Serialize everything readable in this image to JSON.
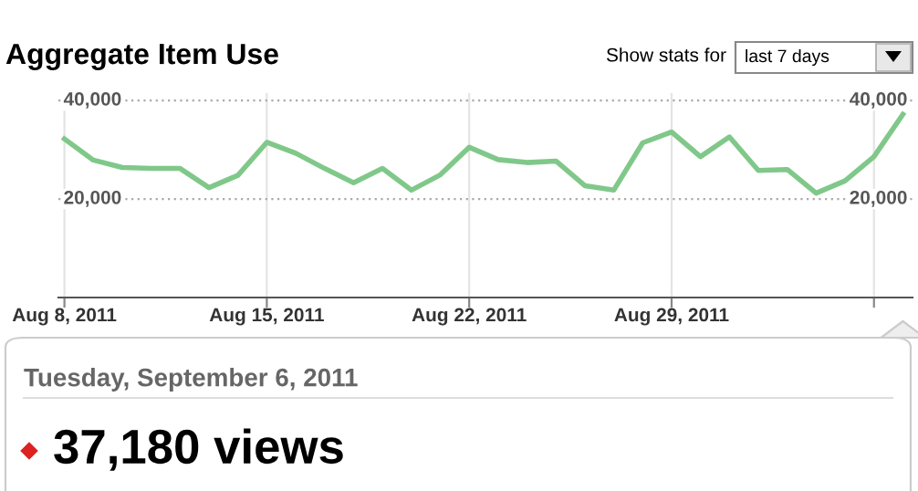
{
  "chart_data": {
    "type": "line",
    "title": "Aggregate Item Use",
    "x": [
      "2011-08-08",
      "2011-08-09",
      "2011-08-10",
      "2011-08-11",
      "2011-08-12",
      "2011-08-13",
      "2011-08-14",
      "2011-08-15",
      "2011-08-16",
      "2011-08-17",
      "2011-08-18",
      "2011-08-19",
      "2011-08-20",
      "2011-08-21",
      "2011-08-22",
      "2011-08-23",
      "2011-08-24",
      "2011-08-25",
      "2011-08-26",
      "2011-08-27",
      "2011-08-28",
      "2011-08-29",
      "2011-08-30",
      "2011-08-31",
      "2011-09-01",
      "2011-09-02",
      "2011-09-03",
      "2011-09-04",
      "2011-09-05",
      "2011-09-06"
    ],
    "series": [
      {
        "color": "#80c88a",
        "values": [
          32200,
          27900,
          26400,
          26200,
          26200,
          22300,
          24800,
          31500,
          29300,
          26200,
          23300,
          26200,
          21800,
          24900,
          30500,
          28000,
          27400,
          27700,
          22700,
          21800,
          31400,
          33600,
          28600,
          32600,
          25800,
          26000,
          21200,
          23700,
          28600,
          37180
        ]
      }
    ],
    "xlim": [
      "2011-08-07T19:00",
      "2011-09-06T08:00"
    ],
    "xticks": [
      {
        "value": "2011-08-08",
        "label": "Aug 8, 2011"
      },
      {
        "value": "2011-08-15",
        "label": "Aug 15, 2011"
      },
      {
        "value": "2011-08-22",
        "label": "Aug 22, 2011"
      },
      {
        "value": "2011-08-29",
        "label": "Aug 29, 2011"
      },
      {
        "value": "2011-09-05",
        "label": null
      }
    ],
    "ylim": [
      0,
      41500
    ],
    "yticks": [
      {
        "value": 20000,
        "label": "20,000"
      },
      {
        "value": 40000,
        "label": "40,000"
      }
    ],
    "y2lim": [
      0,
      41500
    ],
    "y2ticks": [
      {
        "value": 20000,
        "label": "20,000"
      },
      {
        "value": 40000,
        "label": "40,000"
      }
    ],
    "grid": true,
    "annotations": [
      "Show stats for",
      "last 7 days",
      "Tuesday, September 6, 2011",
      "37,180 views"
    ]
  }
}
